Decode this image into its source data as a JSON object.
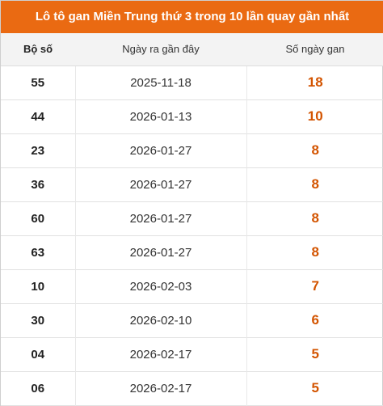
{
  "title": "Lô tô gan Miền Trung thứ 3 trong 10 lần quay gần nhất",
  "columns": {
    "number": "Bộ số",
    "date": "Ngày ra gần đây",
    "days": "Số ngày gan"
  },
  "rows": [
    {
      "number": "55",
      "date": "2025-11-18",
      "days": "18"
    },
    {
      "number": "44",
      "date": "2026-01-13",
      "days": "10"
    },
    {
      "number": "23",
      "date": "2026-01-27",
      "days": "8"
    },
    {
      "number": "36",
      "date": "2026-01-27",
      "days": "8"
    },
    {
      "number": "60",
      "date": "2026-01-27",
      "days": "8"
    },
    {
      "number": "63",
      "date": "2026-01-27",
      "days": "8"
    },
    {
      "number": "10",
      "date": "2026-02-03",
      "days": "7"
    },
    {
      "number": "30",
      "date": "2026-02-10",
      "days": "6"
    },
    {
      "number": "04",
      "date": "2026-02-17",
      "days": "5"
    },
    {
      "number": "06",
      "date": "2026-02-17",
      "days": "5"
    }
  ],
  "colors": {
    "title_bg": "#ea6a12",
    "days_text": "#d35400"
  }
}
